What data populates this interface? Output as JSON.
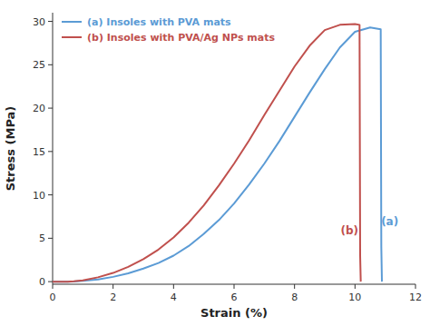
{
  "chart_data": {
    "type": "line",
    "xlabel": "Strain (%)",
    "ylabel": "Stress (MPa)",
    "xlim": [
      0,
      12
    ],
    "ylim": [
      -0.3,
      31
    ],
    "xticks": [
      0,
      2,
      4,
      6,
      8,
      10,
      12
    ],
    "yticks": [
      0,
      5,
      10,
      15,
      20,
      25,
      30
    ],
    "legend": "upper left",
    "series": [
      {
        "name": "(a) Insoles with PVA mats",
        "color": "#5b9bd5",
        "x": [
          0.0,
          0.5,
          0.7,
          1.0,
          1.5,
          2.0,
          2.5,
          3.0,
          3.5,
          4.0,
          4.5,
          5.0,
          5.5,
          6.0,
          6.5,
          7.0,
          7.5,
          8.0,
          8.5,
          9.0,
          9.5,
          10.0,
          10.5,
          10.85,
          10.87,
          10.89
        ],
        "values": [
          0.0,
          0.0,
          0.02,
          0.08,
          0.25,
          0.55,
          0.95,
          1.5,
          2.15,
          3.0,
          4.1,
          5.5,
          7.1,
          9.0,
          11.2,
          13.6,
          16.2,
          19.0,
          21.8,
          24.5,
          27.0,
          28.8,
          29.3,
          29.1,
          4.0,
          0.0
        ]
      },
      {
        "name": "(b) Insoles with PVA/Ag NPs mats",
        "color": "#c0504d",
        "x": [
          0.0,
          0.5,
          0.7,
          1.0,
          1.5,
          2.0,
          2.5,
          3.0,
          3.5,
          4.0,
          4.5,
          5.0,
          5.5,
          6.0,
          6.5,
          7.0,
          7.5,
          8.0,
          8.5,
          9.0,
          9.5,
          10.0,
          10.15,
          10.17,
          10.19
        ],
        "values": [
          0.0,
          0.0,
          0.05,
          0.15,
          0.5,
          1.0,
          1.7,
          2.6,
          3.7,
          5.1,
          6.8,
          8.8,
          11.1,
          13.6,
          16.3,
          19.2,
          22.0,
          24.8,
          27.2,
          29.0,
          29.6,
          29.7,
          29.6,
          3.0,
          0.0
        ]
      }
    ],
    "annotations": [
      {
        "text": "(a)",
        "x": 11.15,
        "y": 6.5,
        "color": "#5b9bd5"
      },
      {
        "text": "(b)",
        "x": 9.82,
        "y": 5.5,
        "color": "#c0504d"
      }
    ]
  }
}
